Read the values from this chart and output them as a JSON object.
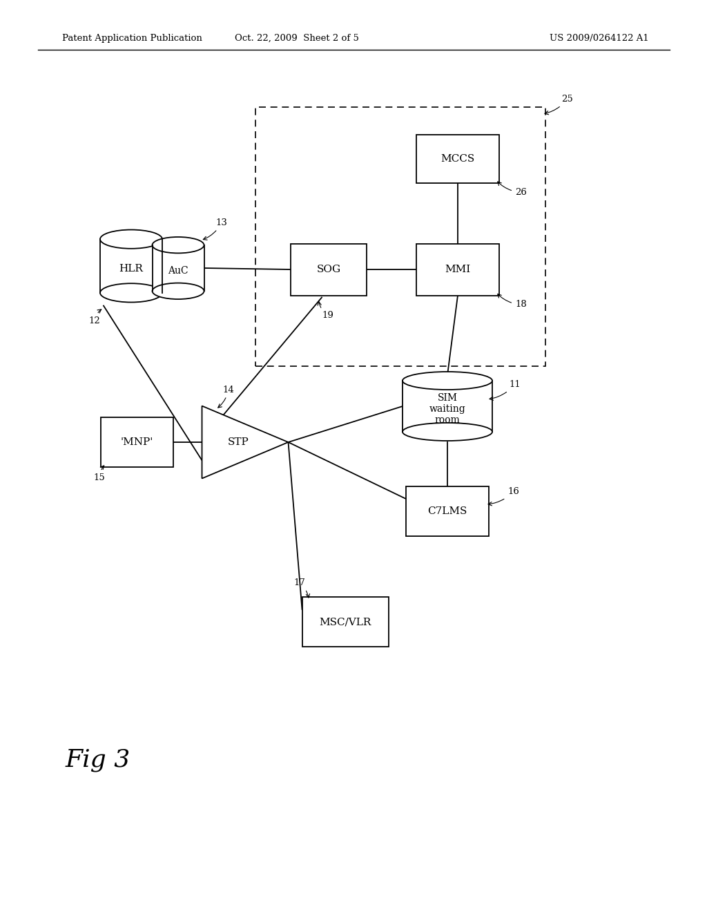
{
  "background_color": "#ffffff",
  "header_left": "Patent Application Publication",
  "header_center": "Oct. 22, 2009  Sheet 2 of 5",
  "header_right": "US 2009/0264122 A1",
  "fig_label": "Fig 3"
}
